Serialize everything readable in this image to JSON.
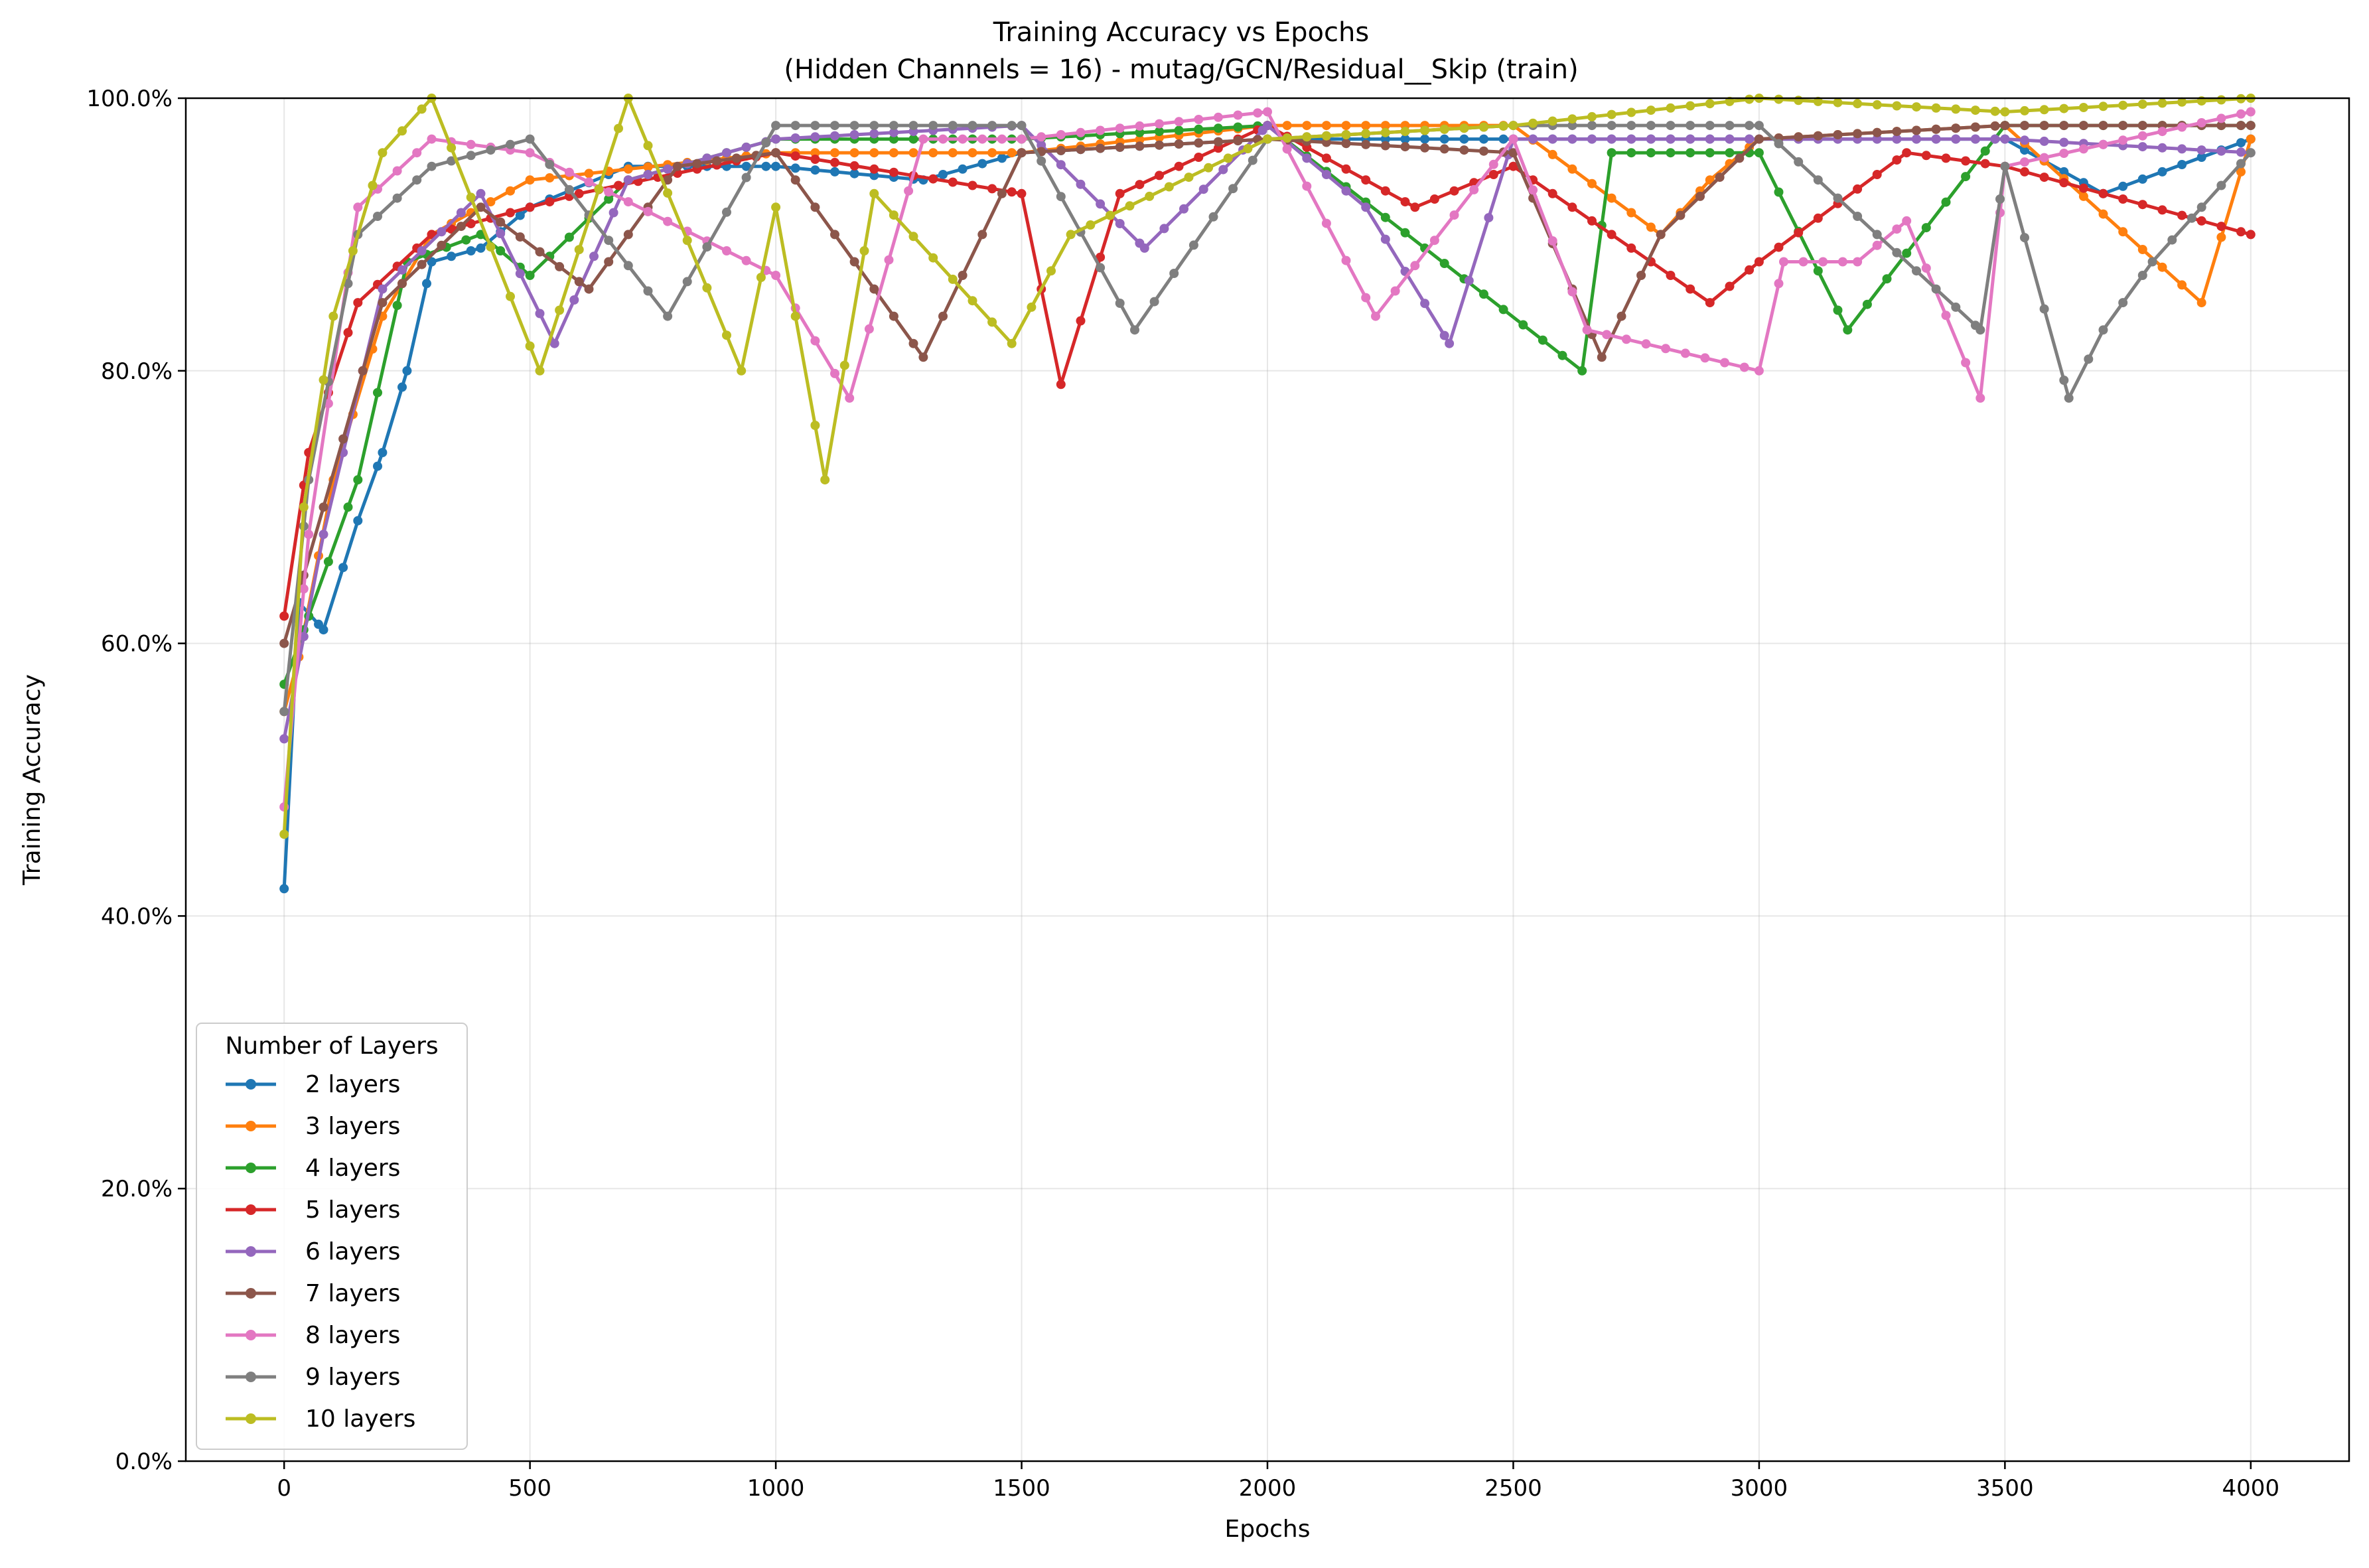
{
  "chart_data": {
    "type": "line",
    "title": "Training Accuracy vs Epochs",
    "subtitle": "(Hidden Channels = 16) - mutag/GCN/Residual__Skip (train)",
    "xlabel": "Epochs",
    "ylabel": "Training Accuracy",
    "xlim": [
      -200,
      4200
    ],
    "ylim": [
      0,
      1
    ],
    "x_ticks": [
      0,
      500,
      1000,
      1500,
      2000,
      2500,
      3000,
      3500,
      4000
    ],
    "x_tick_labels": [
      "0",
      "500",
      "1000",
      "1500",
      "2000",
      "2500",
      "3000",
      "3500",
      "4000"
    ],
    "y_ticks": [
      0,
      0.2,
      0.4,
      0.6,
      0.8,
      1.0
    ],
    "y_tick_labels": [
      "0.0%",
      "20.0%",
      "40.0%",
      "60.0%",
      "80.0%",
      "100.0%"
    ],
    "grid": true,
    "legend": {
      "title": "Number of Layers",
      "placement": "lower-left"
    },
    "series": [
      {
        "name": "2 layers",
        "color": "#1f77b4",
        "points": [
          [
            0,
            0.42
          ],
          [
            30,
            0.63
          ],
          [
            80,
            0.61
          ],
          [
            150,
            0.69
          ],
          [
            200,
            0.74
          ],
          [
            250,
            0.8
          ],
          [
            300,
            0.88
          ],
          [
            400,
            0.89
          ],
          [
            500,
            0.92
          ],
          [
            700,
            0.95
          ],
          [
            1000,
            0.95
          ],
          [
            1300,
            0.94
          ],
          [
            1500,
            0.96
          ],
          [
            2000,
            0.97
          ],
          [
            2500,
            0.97
          ],
          [
            3000,
            0.97
          ],
          [
            3500,
            0.97
          ],
          [
            3700,
            0.93
          ],
          [
            4000,
            0.97
          ]
        ]
      },
      {
        "name": "3 layers",
        "color": "#ff7f0e",
        "points": [
          [
            0,
            0.55
          ],
          [
            30,
            0.59
          ],
          [
            100,
            0.72
          ],
          [
            200,
            0.84
          ],
          [
            300,
            0.9
          ],
          [
            500,
            0.94
          ],
          [
            1000,
            0.96
          ],
          [
            1500,
            0.96
          ],
          [
            2000,
            0.98
          ],
          [
            2500,
            0.98
          ],
          [
            2800,
            0.9
          ],
          [
            2900,
            0.94
          ],
          [
            3000,
            0.97
          ],
          [
            3500,
            0.98
          ],
          [
            3900,
            0.85
          ],
          [
            4000,
            0.97
          ]
        ]
      },
      {
        "name": "4 layers",
        "color": "#2ca02c",
        "points": [
          [
            0,
            0.57
          ],
          [
            50,
            0.62
          ],
          [
            150,
            0.72
          ],
          [
            250,
            0.88
          ],
          [
            400,
            0.9
          ],
          [
            500,
            0.87
          ],
          [
            700,
            0.94
          ],
          [
            1000,
            0.97
          ],
          [
            1500,
            0.97
          ],
          [
            2000,
            0.98
          ],
          [
            2640,
            0.8
          ],
          [
            2700,
            0.96
          ],
          [
            3000,
            0.96
          ],
          [
            3180,
            0.83
          ],
          [
            3500,
            0.98
          ],
          [
            4000,
            0.98
          ]
        ]
      },
      {
        "name": "5 layers",
        "color": "#d62728",
        "points": [
          [
            0,
            0.62
          ],
          [
            50,
            0.74
          ],
          [
            150,
            0.85
          ],
          [
            300,
            0.9
          ],
          [
            600,
            0.93
          ],
          [
            1000,
            0.96
          ],
          [
            1500,
            0.93
          ],
          [
            1580,
            0.79
          ],
          [
            1700,
            0.93
          ],
          [
            2000,
            0.98
          ],
          [
            2300,
            0.92
          ],
          [
            2500,
            0.95
          ],
          [
            2900,
            0.85
          ],
          [
            3000,
            0.88
          ],
          [
            3300,
            0.96
          ],
          [
            3500,
            0.95
          ],
          [
            4000,
            0.9
          ]
        ]
      },
      {
        "name": "6 layers",
        "color": "#9467bd",
        "points": [
          [
            0,
            0.53
          ],
          [
            80,
            0.68
          ],
          [
            200,
            0.86
          ],
          [
            400,
            0.93
          ],
          [
            550,
            0.82
          ],
          [
            700,
            0.94
          ],
          [
            1000,
            0.97
          ],
          [
            1500,
            0.98
          ],
          [
            1750,
            0.89
          ],
          [
            2000,
            0.98
          ],
          [
            2200,
            0.92
          ],
          [
            2370,
            0.82
          ],
          [
            2500,
            0.97
          ],
          [
            3000,
            0.97
          ],
          [
            3500,
            0.97
          ],
          [
            4000,
            0.96
          ]
        ]
      },
      {
        "name": "7 layers",
        "color": "#8c564b",
        "points": [
          [
            0,
            0.6
          ],
          [
            80,
            0.7
          ],
          [
            200,
            0.85
          ],
          [
            400,
            0.92
          ],
          [
            620,
            0.86
          ],
          [
            800,
            0.95
          ],
          [
            1000,
            0.96
          ],
          [
            1300,
            0.81
          ],
          [
            1500,
            0.96
          ],
          [
            2000,
            0.97
          ],
          [
            2500,
            0.96
          ],
          [
            2680,
            0.81
          ],
          [
            2800,
            0.9
          ],
          [
            3000,
            0.97
          ],
          [
            3500,
            0.98
          ],
          [
            4000,
            0.98
          ]
        ]
      },
      {
        "name": "8 layers",
        "color": "#e377c2",
        "points": [
          [
            0,
            0.48
          ],
          [
            50,
            0.68
          ],
          [
            150,
            0.92
          ],
          [
            300,
            0.97
          ],
          [
            500,
            0.96
          ],
          [
            1000,
            0.87
          ],
          [
            1150,
            0.78
          ],
          [
            1300,
            0.97
          ],
          [
            1500,
            0.97
          ],
          [
            2000,
            0.99
          ],
          [
            2220,
            0.84
          ],
          [
            2500,
            0.97
          ],
          [
            2650,
            0.83
          ],
          [
            3000,
            0.8
          ],
          [
            3050,
            0.88
          ],
          [
            3200,
            0.88
          ],
          [
            3300,
            0.91
          ],
          [
            3450,
            0.78
          ],
          [
            3500,
            0.95
          ],
          [
            4000,
            0.99
          ]
        ]
      },
      {
        "name": "9 layers",
        "color": "#7f7f7f",
        "points": [
          [
            0,
            0.55
          ],
          [
            50,
            0.72
          ],
          [
            150,
            0.9
          ],
          [
            300,
            0.95
          ],
          [
            500,
            0.97
          ],
          [
            780,
            0.84
          ],
          [
            1000,
            0.98
          ],
          [
            1500,
            0.98
          ],
          [
            1730,
            0.83
          ],
          [
            2000,
            0.97
          ],
          [
            2500,
            0.98
          ],
          [
            3000,
            0.98
          ],
          [
            3450,
            0.83
          ],
          [
            3500,
            0.95
          ],
          [
            3630,
            0.78
          ],
          [
            3700,
            0.83
          ],
          [
            3800,
            0.88
          ],
          [
            3900,
            0.92
          ],
          [
            4000,
            0.96
          ]
        ]
      },
      {
        "name": "10 layers",
        "color": "#bcbd22",
        "points": [
          [
            0,
            0.46
          ],
          [
            40,
            0.7
          ],
          [
            100,
            0.84
          ],
          [
            200,
            0.96
          ],
          [
            300,
            1.0
          ],
          [
            520,
            0.8
          ],
          [
            700,
            1.0
          ],
          [
            930,
            0.8
          ],
          [
            1000,
            0.92
          ],
          [
            1100,
            0.72
          ],
          [
            1200,
            0.93
          ],
          [
            1480,
            0.82
          ],
          [
            1600,
            0.9
          ],
          [
            2000,
            0.97
          ],
          [
            2500,
            0.98
          ],
          [
            3000,
            1.0
          ],
          [
            3500,
            0.99
          ],
          [
            4000,
            1.0
          ]
        ]
      }
    ]
  }
}
